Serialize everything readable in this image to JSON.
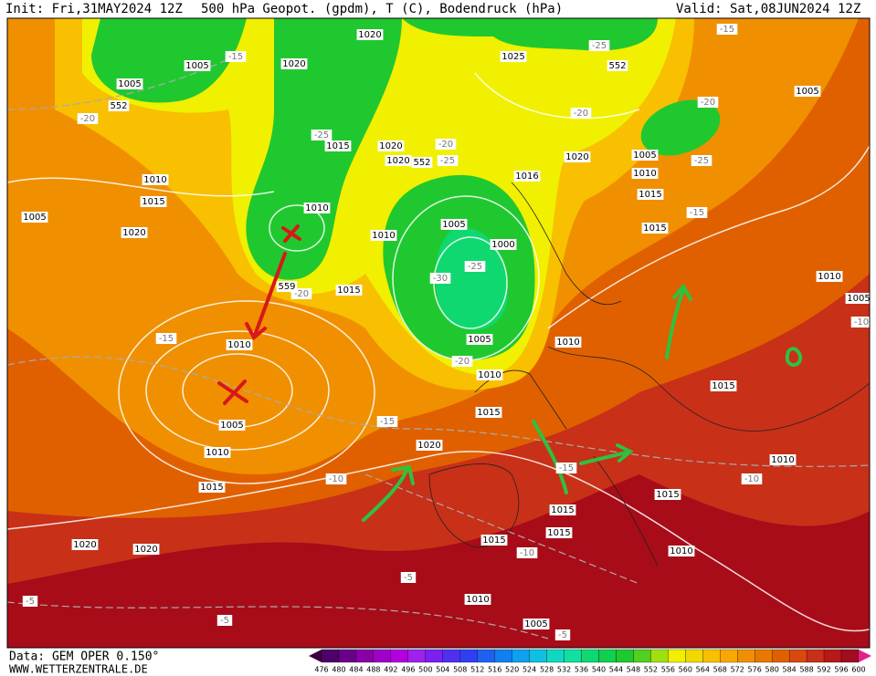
{
  "header": {
    "init": "Init: Fri,31MAY2024 12Z",
    "title": "500 hPa Geopot. (gpdm), T (C), Bodendruck (hPa)",
    "valid": "Valid: Sat,08JUN2024 12Z"
  },
  "footer": {
    "data": "Data: GEM OPER 0.150°",
    "site": "WWW.WETTERZENTRALE.DE"
  },
  "scale": {
    "labels": [
      476,
      480,
      484,
      488,
      492,
      496,
      500,
      504,
      508,
      512,
      516,
      520,
      524,
      528,
      532,
      536,
      540,
      544,
      548,
      552,
      556,
      560,
      564,
      568,
      572,
      576,
      580,
      584,
      588,
      592,
      596,
      600
    ],
    "colors": [
      "#3a0040",
      "#50006a",
      "#6a0088",
      "#8a00a8",
      "#a000c8",
      "#b400e0",
      "#a020f0",
      "#7a20f0",
      "#5030f0",
      "#3040f0",
      "#2060f0",
      "#1080f0",
      "#10a0f0",
      "#10c0e0",
      "#10d8c0",
      "#10e0a0",
      "#10d870",
      "#10d050",
      "#20c830",
      "#50d020",
      "#a0e010",
      "#f0f000",
      "#f0d800",
      "#f8c000",
      "#f8a800",
      "#f09000",
      "#e87800",
      "#e06000",
      "#d84810",
      "#c83018",
      "#b81818",
      "#a00c20",
      "#e0208c"
    ]
  },
  "map_labels": [
    "1020",
    "1020",
    "1005",
    "1005",
    "-15",
    "552",
    "-20",
    "1025",
    "-25",
    "552",
    "-15",
    "1005",
    "-20",
    "-20",
    "-25",
    "1015",
    "1020",
    "-20",
    "1020",
    "552",
    "-25",
    "1020",
    "1005",
    "1010",
    "-25",
    "1016",
    "1010",
    "1015",
    "1005",
    "1020",
    "1010",
    "1010",
    "1005",
    "1000",
    "-25",
    "-30",
    "1015",
    "1015",
    "-15",
    "1010",
    "1005",
    "-10",
    "-20",
    "1015",
    "559",
    "-15",
    "1010",
    "1005",
    "1010",
    "-20",
    "1010",
    "1015",
    "1005",
    "1015",
    "-15",
    "1020",
    "1010",
    "1010",
    "-15",
    "-10",
    "-10",
    "1015",
    "1015",
    "1015",
    "1015",
    "1015",
    "1020",
    "1020",
    "-10",
    "1010",
    "-5",
    "-5",
    "1010",
    "-5",
    "1005",
    "-5"
  ]
}
